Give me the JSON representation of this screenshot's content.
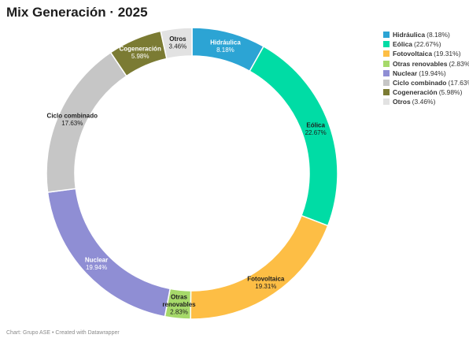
{
  "title": "Mix Generación · 2025",
  "footer": "Chart: Grupo ASE • Created with Datawrapper",
  "chart_data": {
    "type": "pie",
    "donut": true,
    "title": "Mix Generación · 2025",
    "legend_position": "right",
    "slices": [
      {
        "label": "Hidráulica",
        "label_lines": [
          "Hidráulica"
        ],
        "value": 8.18,
        "pct_label": "8.18%",
        "legend_pct": "(8.18%)",
        "color": "#2ca4d4",
        "text_color": "#ffffff"
      },
      {
        "label": "Eólica",
        "label_lines": [
          "Eólica"
        ],
        "value": 22.67,
        "pct_label": "22.67%",
        "legend_pct": "(22.67%)",
        "color": "#00dca5",
        "text_color": "#1d1d1d"
      },
      {
        "label": "Fotovoltaica",
        "label_lines": [
          "Fotovoltaica"
        ],
        "value": 19.31,
        "pct_label": "19.31%",
        "legend_pct": "(19.31%)",
        "color": "#fdbe45",
        "text_color": "#1d1d1d"
      },
      {
        "label": "Otras renovables",
        "label_lines": [
          "Otras",
          "renovables"
        ],
        "value": 2.83,
        "pct_label": "2.83%",
        "legend_pct": "(2.83%)",
        "color": "#a6d96a",
        "text_color": "#1d1d1d"
      },
      {
        "label": "Nuclear",
        "label_lines": [
          "Nuclear"
        ],
        "value": 19.94,
        "pct_label": "19.94%",
        "legend_pct": "(19.94%)",
        "color": "#8f8ed4",
        "text_color": "#ffffff"
      },
      {
        "label": "Ciclo combinado",
        "label_lines": [
          "Ciclo combinado"
        ],
        "value": 17.63,
        "pct_label": "17.63%",
        "legend_pct": "(17.63%)",
        "color": "#c6c6c6",
        "text_color": "#1d1d1d"
      },
      {
        "label": "Cogeneración",
        "label_lines": [
          "Cogeneración"
        ],
        "value": 5.98,
        "pct_label": "5.98%",
        "legend_pct": "(5.98%)",
        "color": "#7b7b33",
        "text_color": "#ffffff"
      },
      {
        "label": "Otros",
        "label_lines": [
          "Otros"
        ],
        "value": 3.46,
        "pct_label": "3.46%",
        "legend_pct": "(3.46%)",
        "color": "#e2e2e2",
        "text_color": "#1d1d1d"
      }
    ]
  }
}
